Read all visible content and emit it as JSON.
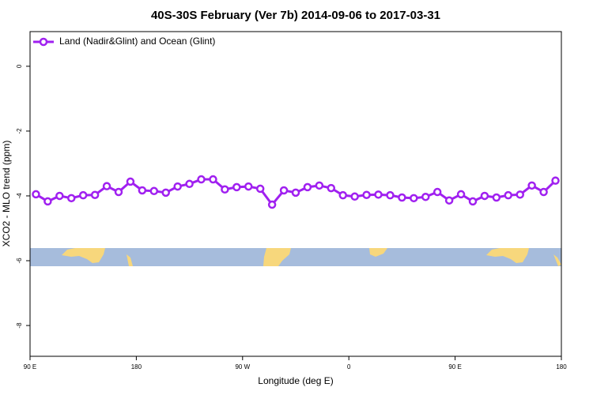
{
  "chart_data": {
    "type": "line",
    "title": "40S-30S February (Ver 7b)   2014-09-06 to 2017-03-31",
    "xlabel": "Longitude (deg E)",
    "ylabel": "XCO2 - MLO trend (ppm)",
    "x": [
      95,
      105,
      115,
      125,
      135,
      145,
      155,
      165,
      175,
      185,
      195,
      205,
      215,
      225,
      235,
      245,
      255,
      265,
      275,
      285,
      295,
      305,
      315,
      325,
      335,
      345,
      355,
      365,
      375,
      385,
      395,
      405,
      415,
      425,
      435,
      445,
      455,
      465,
      475,
      485,
      495,
      505,
      515,
      525,
      535
    ],
    "series": [
      {
        "name": "Land (Nadir&Glint) and Ocean (Glint)",
        "color": "#a020f0",
        "values": [
          -3.95,
          -4.17,
          -4.0,
          -4.07,
          -3.98,
          -3.97,
          -3.7,
          -3.88,
          -3.56,
          -3.83,
          -3.85,
          -3.9,
          -3.71,
          -3.63,
          -3.49,
          -3.49,
          -3.8,
          -3.73,
          -3.71,
          -3.78,
          -4.27,
          -3.83,
          -3.9,
          -3.73,
          -3.68,
          -3.76,
          -3.98,
          -4.02,
          -3.97,
          -3.96,
          -3.98,
          -4.05,
          -4.07,
          -4.03,
          -3.88,
          -4.14,
          -3.95,
          -4.17,
          -4.0,
          -4.05,
          -3.98,
          -3.96,
          -3.68,
          -3.88,
          -3.53
        ]
      }
    ],
    "xlim": [
      90,
      540
    ],
    "xticks": [
      {
        "value": 90,
        "label": "90 E"
      },
      180,
      {
        "value": 270,
        "label": "90 W"
      },
      {
        "value": 360,
        "label": "0"
      },
      {
        "value": 450,
        "label": "90 E"
      },
      {
        "value": 540,
        "label": "180"
      }
    ],
    "ylim": [
      -8.95,
      1.07
    ],
    "yticks": [
      -8,
      -6,
      -4,
      -2,
      0
    ],
    "legend": "top-left"
  }
}
